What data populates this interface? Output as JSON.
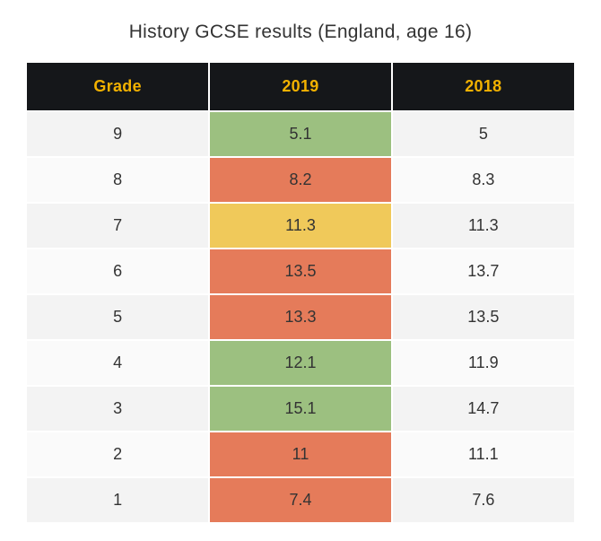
{
  "title": "History GCSE results (England, age 16)",
  "table": {
    "type": "table",
    "columns": [
      "Grade",
      "2019",
      "2018"
    ],
    "rows": [
      {
        "grade": "9",
        "y2019": "5.1",
        "y2018": "5",
        "color2019": "#9cc080"
      },
      {
        "grade": "8",
        "y2019": "8.2",
        "y2018": "8.3",
        "color2019": "#e57b5a"
      },
      {
        "grade": "7",
        "y2019": "11.3",
        "y2018": "11.3",
        "color2019": "#f0c95a"
      },
      {
        "grade": "6",
        "y2019": "13.5",
        "y2018": "13.7",
        "color2019": "#e57b5a"
      },
      {
        "grade": "5",
        "y2019": "13.3",
        "y2018": "13.5",
        "color2019": "#e57b5a"
      },
      {
        "grade": "4",
        "y2019": "12.1",
        "y2018": "11.9",
        "color2019": "#9cc080"
      },
      {
        "grade": "3",
        "y2019": "15.1",
        "y2018": "14.7",
        "color2019": "#9cc080"
      },
      {
        "grade": "2",
        "y2019": "11",
        "y2018": "11.1",
        "color2019": "#e57b5a"
      },
      {
        "grade": "1",
        "y2019": "7.4",
        "y2018": "7.6",
        "color2019": "#e57b5a"
      }
    ],
    "header_bg": "#15171a",
    "header_color": "#f2b100",
    "row_even_bg": "#f3f3f3",
    "row_odd_bg": "#fafafa",
    "title_fontsize": 21,
    "cell_fontsize": 18,
    "header_fontsize": 18,
    "border_color": "#ffffff"
  }
}
